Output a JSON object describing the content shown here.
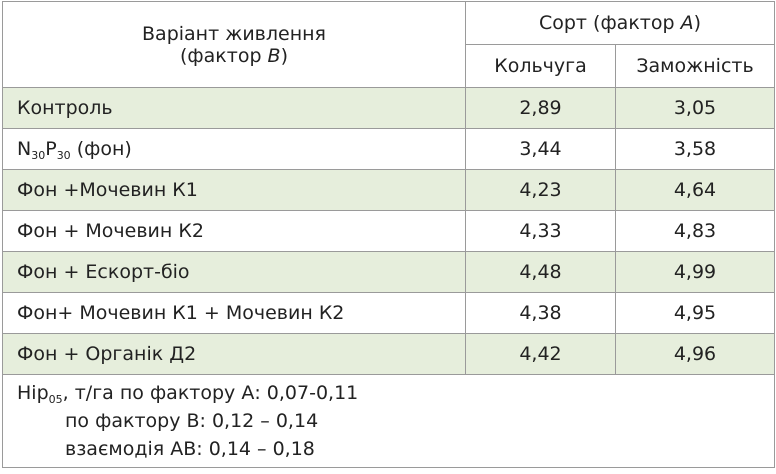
{
  "table": {
    "header": {
      "variant": {
        "line1": [
          "Варіант живлення"
        ],
        "line2": [
          "(фактор ",
          "B",
          ")"
        ]
      },
      "sort": [
        "Сорт (фактор ",
        "A",
        ")"
      ],
      "columns": [
        "Кольчуга",
        "Заможність"
      ]
    },
    "rows": [
      {
        "label": [
          "Контроль"
        ],
        "values": [
          "2,89",
          "3,05"
        ]
      },
      {
        "label": [
          "N",
          "30",
          "P",
          "30",
          " (фон)"
        ],
        "values": [
          "3,44",
          "3,58"
        ]
      },
      {
        "label": [
          "Фон +Мочевин К1"
        ],
        "values": [
          "4,23",
          "4,64"
        ]
      },
      {
        "label": [
          "Фон + Мочевин К2"
        ],
        "values": [
          "4,33",
          "4,83"
        ]
      },
      {
        "label": [
          "Фон + Ескорт-біо"
        ],
        "values": [
          "4,48",
          "4,99"
        ]
      },
      {
        "label": [
          "Фон+ Мочевин К1 + Мочевин К2"
        ],
        "values": [
          "4,38",
          "4,95"
        ]
      },
      {
        "label": [
          "Фон + Органік Д2"
        ],
        "values": [
          "4,42",
          "4,96"
        ]
      }
    ],
    "note": {
      "lines": [
        [
          "Hip",
          "05",
          ", т/га  по фактору А: 0,07-0,11"
        ],
        [
          "по фактору В: 0,12 – 0,14"
        ],
        [
          "взаємодія АВ: 0,14 – 0,18"
        ]
      ]
    }
  }
}
